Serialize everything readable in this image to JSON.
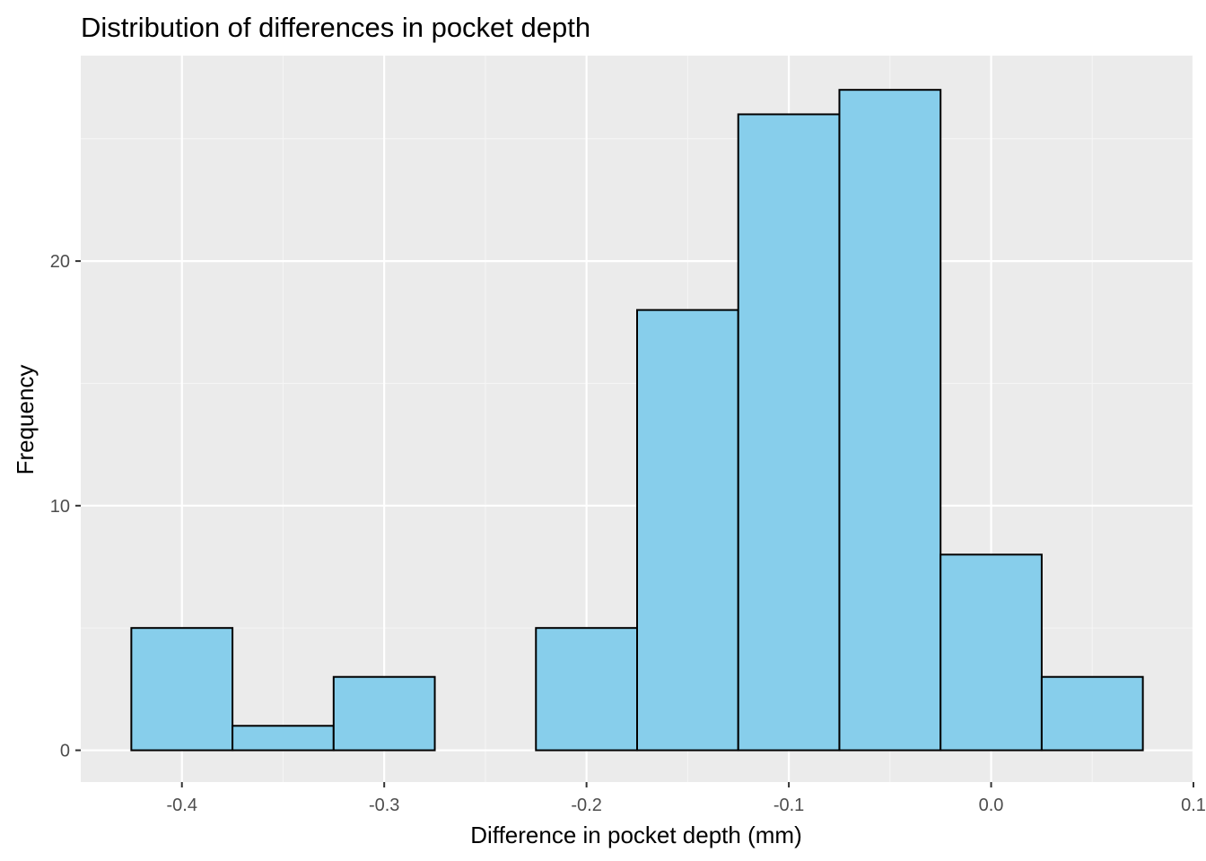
{
  "chart_data": {
    "type": "bar",
    "title": "Distribution of differences in pocket depth",
    "xlabel": "Difference in pocket depth (mm)",
    "ylabel": "Frequency",
    "bin_width": 0.05,
    "bins": [
      {
        "x_start": -0.425,
        "x_end": -0.375,
        "count": 5
      },
      {
        "x_start": -0.375,
        "x_end": -0.325,
        "count": 1
      },
      {
        "x_start": -0.325,
        "x_end": -0.275,
        "count": 3
      },
      {
        "x_start": -0.275,
        "x_end": -0.225,
        "count": 0
      },
      {
        "x_start": -0.225,
        "x_end": -0.175,
        "count": 5
      },
      {
        "x_start": -0.175,
        "x_end": -0.125,
        "count": 18
      },
      {
        "x_start": -0.125,
        "x_end": -0.075,
        "count": 26
      },
      {
        "x_start": -0.075,
        "x_end": -0.025,
        "count": 27
      },
      {
        "x_start": -0.025,
        "x_end": 0.025,
        "count": 8
      },
      {
        "x_start": 0.025,
        "x_end": 0.075,
        "count": 3
      }
    ],
    "xlim": [
      -0.45,
      0.1
    ],
    "ylim": [
      -1.3,
      28.4
    ],
    "x_ticks": [
      -0.4,
      -0.3,
      -0.2,
      -0.1,
      0.0,
      0.1
    ],
    "x_tick_labels": [
      "-0.4",
      "-0.3",
      "-0.2",
      "-0.1",
      "0.0",
      "0.1"
    ],
    "y_ticks": [
      0,
      10,
      20
    ],
    "y_tick_labels": [
      "0",
      "10",
      "20"
    ],
    "grid": true,
    "legend": "none",
    "colors": {
      "bar_fill": "#87CEEB",
      "bar_stroke": "#000000",
      "panel_background": "#EBEBEB",
      "grid_major": "#FFFFFF",
      "grid_minor": "#F5F5F5",
      "tick_text": "#4D4D4D",
      "tick_mark": "#333333"
    }
  }
}
